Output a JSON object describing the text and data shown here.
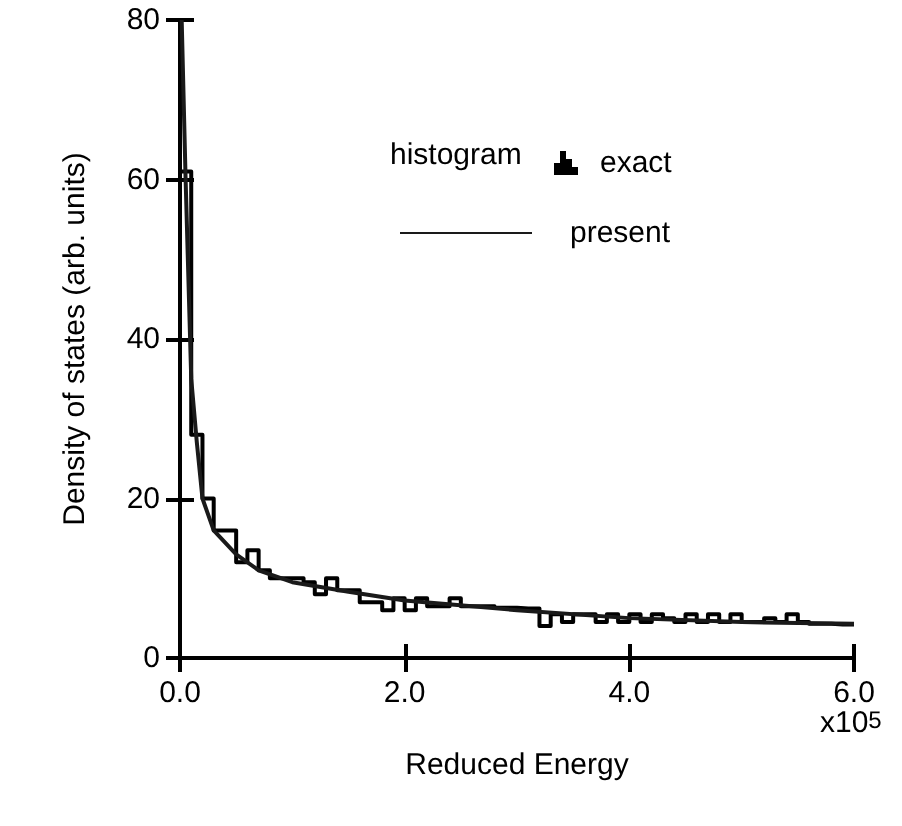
{
  "chart_data": {
    "type": "histogram",
    "xlabel": "Reduced Energy",
    "ylabel": "Density of states (arb. units)",
    "bins": [
      0,
      0.1,
      0.2,
      0.3,
      0.4,
      0.5,
      0.6,
      0.7,
      0.8,
      0.9,
      1.0,
      1.1,
      1.2,
      1.3,
      1.4,
      1.5,
      1.6,
      1.7,
      1.8,
      1.9,
      2.0,
      2.1,
      2.2,
      2.3,
      2.4,
      2.5,
      2.6,
      2.7,
      2.8,
      2.9,
      3.0,
      3.1,
      3.2,
      3.3,
      3.4,
      3.5,
      3.6,
      3.7,
      3.8,
      3.9,
      4.0,
      4.1,
      4.2,
      4.3,
      4.4,
      4.5,
      4.6,
      4.7,
      4.8,
      4.9,
      5.0,
      5.1,
      5.2,
      5.3,
      5.4,
      5.5,
      5.6,
      5.7,
      5.8,
      5.9,
      6.0
    ],
    "series": [
      {
        "name": "exact",
        "color": "#000000",
        "values": [
          61,
          28,
          20,
          16,
          16,
          12,
          13.5,
          11,
          10,
          10,
          10,
          9.5,
          8,
          10,
          8.5,
          8.5,
          7,
          7,
          6,
          7.5,
          6,
          7.5,
          6.5,
          6.5,
          7.5,
          6.5,
          6.5,
          6.5,
          6.3,
          6.3,
          6.2,
          6.2,
          4,
          5.5,
          4.5,
          5.5,
          5.5,
          4.5,
          5.5,
          4.5,
          5.5,
          4.5,
          5.5,
          5,
          4.5,
          5.5,
          4.5,
          5.5,
          4.5,
          5.5,
          4.5,
          4.5,
          5,
          4.5,
          5.5,
          4.5,
          4.3,
          4.3,
          4.2,
          4.2
        ]
      },
      {
        "name": "present",
        "type": "line",
        "color": "#1a1a1a",
        "x": [
          0.015,
          0.05,
          0.1,
          0.15,
          0.2,
          0.3,
          0.5,
          0.7,
          1.0,
          1.5,
          2.0,
          3.0,
          4.0,
          5.0,
          6.0
        ],
        "values": [
          80,
          60,
          35,
          27,
          20,
          16,
          13,
          11,
          9.5,
          8.3,
          7.2,
          6,
          5,
          4.5,
          4.3
        ]
      }
    ],
    "xlim": [
      0,
      6
    ],
    "xticks": [
      {
        "value": 0,
        "label": "0.0"
      },
      {
        "value": 2,
        "label": "2.0"
      },
      {
        "value": 4,
        "label": "4.0"
      },
      {
        "value": 6,
        "label": "6.0"
      }
    ],
    "ylim": [
      0,
      80
    ],
    "yticks": [
      0,
      20,
      40,
      60,
      80
    ],
    "annotations": [
      "histogram",
      "x10$^{5}$"
    ],
    "legend": "top right",
    "grid": false,
    "marker": "none",
    "line_style": "solid"
  }
}
